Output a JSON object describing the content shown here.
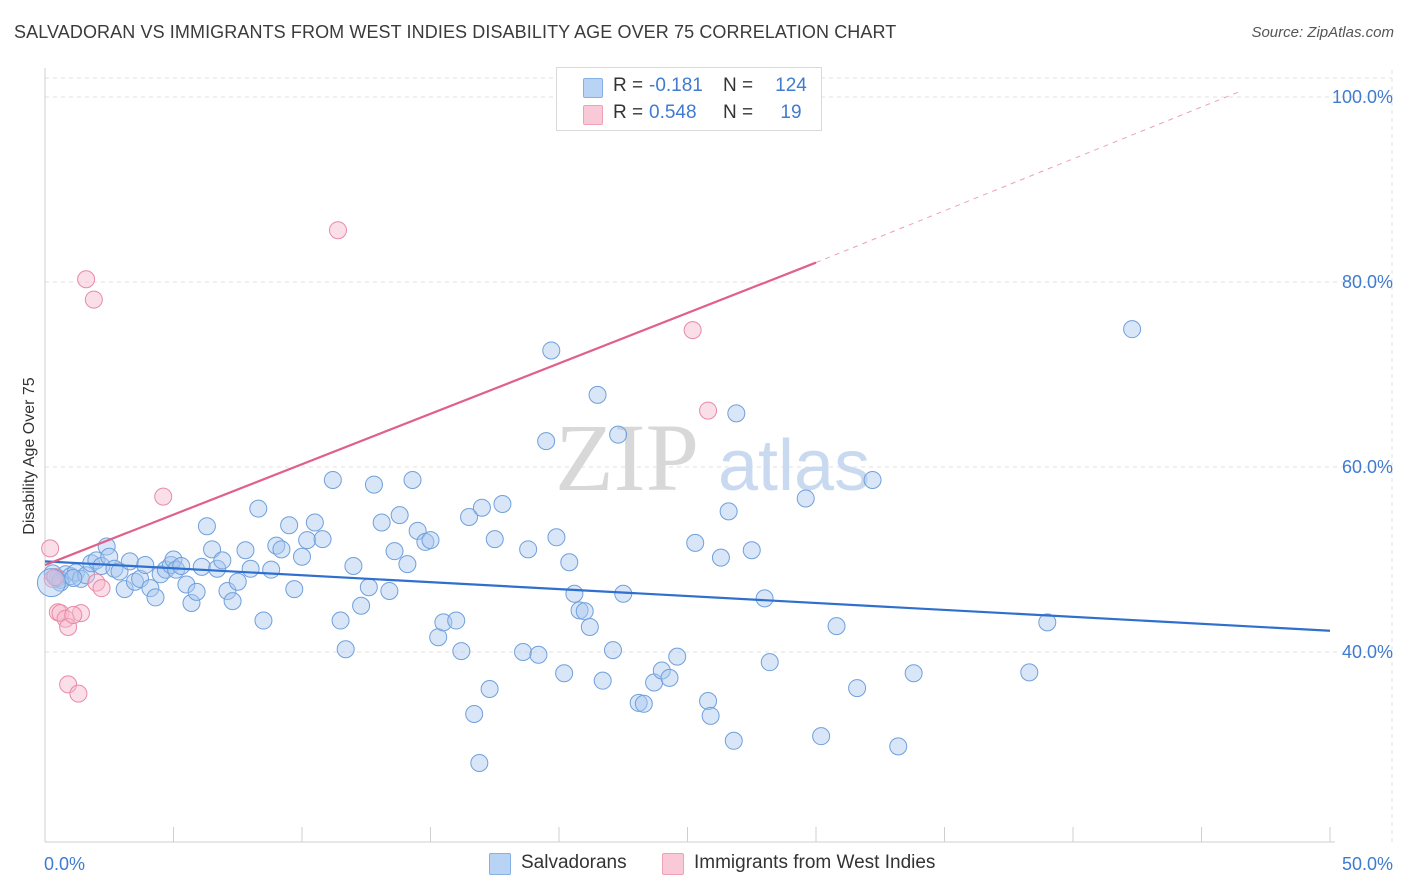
{
  "title": "SALVADORAN VS IMMIGRANTS FROM WEST INDIES DISABILITY AGE OVER 75 CORRELATION CHART",
  "source": "Source: ZipAtlas.com",
  "legend": {
    "r_label": "R =",
    "n_label": "N =",
    "rows": [
      {
        "name": "Salvadorans",
        "r": "-0.181",
        "n": "124",
        "color": "#a8c8f0"
      },
      {
        "name": "Immigrants from West Indies",
        "r": "0.548",
        "n": "19",
        "color": "#f6b8cc"
      }
    ]
  },
  "chart_data": {
    "type": "scatter",
    "title": "SALVADORAN VS IMMIGRANTS FROM WEST INDIES DISABILITY AGE OVER 75 CORRELATION CHART",
    "xlabel": "",
    "ylabel": "Disability Age Over 75",
    "xlim": [
      0,
      50
    ],
    "ylim": [
      20,
      102
    ],
    "x_tick_labels": [
      "0.0%",
      "50.0%"
    ],
    "y_ticks": [
      40,
      60,
      80,
      100
    ],
    "y_tick_labels": [
      "40.0%",
      "60.0%",
      "80.0%",
      "100.0%"
    ],
    "grid": true,
    "watermark": {
      "zip": "ZIP",
      "atlas": "atlas"
    },
    "series": [
      {
        "name": "Salvadorans",
        "color": "#a8c8f0",
        "stroke": "#6fa0dc",
        "trend": {
          "x0": 0,
          "y0": 49.8,
          "x1": 50,
          "y1": 42.3,
          "color": "#2f6fcd"
        },
        "points": [
          [
            0.3,
            48.5
          ],
          [
            0.5,
            48.0
          ],
          [
            0.6,
            47.8
          ],
          [
            0.8,
            48.4
          ],
          [
            1.0,
            48.2
          ],
          [
            1.2,
            48.6
          ],
          [
            1.4,
            47.9
          ],
          [
            1.6,
            48.3
          ],
          [
            1.8,
            49.6
          ],
          [
            2.0,
            49.9
          ],
          [
            2.2,
            49.3
          ],
          [
            2.4,
            51.4
          ],
          [
            2.5,
            50.3
          ],
          [
            2.7,
            49.0
          ],
          [
            2.9,
            48.7
          ],
          [
            3.1,
            46.8
          ],
          [
            3.3,
            49.8
          ],
          [
            3.5,
            47.6
          ],
          [
            3.7,
            47.9
          ],
          [
            3.9,
            49.4
          ],
          [
            4.1,
            46.9
          ],
          [
            4.3,
            45.9
          ],
          [
            4.5,
            48.4
          ],
          [
            4.7,
            48.9
          ],
          [
            4.9,
            49.4
          ],
          [
            5.0,
            50.0
          ],
          [
            5.1,
            48.9
          ],
          [
            5.3,
            49.3
          ],
          [
            5.5,
            47.3
          ],
          [
            5.7,
            45.3
          ],
          [
            5.9,
            46.5
          ],
          [
            6.1,
            49.2
          ],
          [
            6.3,
            53.6
          ],
          [
            6.5,
            51.1
          ],
          [
            6.7,
            49.0
          ],
          [
            6.9,
            49.9
          ],
          [
            7.1,
            46.6
          ],
          [
            7.3,
            45.5
          ],
          [
            7.5,
            47.6
          ],
          [
            7.8,
            51.0
          ],
          [
            8.0,
            49.0
          ],
          [
            8.3,
            55.5
          ],
          [
            8.5,
            43.4
          ],
          [
            8.8,
            48.9
          ],
          [
            9.0,
            51.5
          ],
          [
            9.2,
            51.1
          ],
          [
            9.5,
            53.7
          ],
          [
            9.7,
            46.8
          ],
          [
            10.0,
            50.3
          ],
          [
            10.2,
            52.1
          ],
          [
            10.5,
            54.0
          ],
          [
            10.8,
            52.2
          ],
          [
            11.2,
            58.6
          ],
          [
            11.5,
            43.4
          ],
          [
            11.7,
            40.3
          ],
          [
            12.0,
            49.3
          ],
          [
            12.3,
            45.0
          ],
          [
            12.6,
            47.0
          ],
          [
            12.8,
            58.1
          ],
          [
            13.1,
            54.0
          ],
          [
            13.4,
            46.6
          ],
          [
            13.6,
            50.9
          ],
          [
            13.8,
            54.8
          ],
          [
            14.1,
            49.5
          ],
          [
            14.3,
            58.6
          ],
          [
            14.5,
            53.1
          ],
          [
            14.8,
            51.9
          ],
          [
            15.0,
            52.1
          ],
          [
            15.3,
            41.6
          ],
          [
            15.5,
            43.2
          ],
          [
            16.0,
            43.4
          ],
          [
            16.2,
            40.1
          ],
          [
            16.5,
            54.6
          ],
          [
            16.7,
            33.3
          ],
          [
            17.0,
            55.6
          ],
          [
            17.3,
            36.0
          ],
          [
            17.5,
            52.2
          ],
          [
            17.8,
            56.0
          ],
          [
            16.9,
            28.0
          ],
          [
            18.6,
            40.0
          ],
          [
            18.8,
            51.1
          ],
          [
            19.2,
            39.7
          ],
          [
            19.5,
            62.8
          ],
          [
            19.7,
            72.6
          ],
          [
            19.9,
            52.4
          ],
          [
            20.2,
            37.7
          ],
          [
            20.4,
            49.7
          ],
          [
            20.6,
            46.3
          ],
          [
            20.8,
            44.5
          ],
          [
            21.0,
            44.4
          ],
          [
            21.2,
            42.7
          ],
          [
            21.5,
            67.8
          ],
          [
            21.7,
            36.9
          ],
          [
            22.1,
            40.2
          ],
          [
            22.3,
            63.5
          ],
          [
            22.5,
            46.3
          ],
          [
            23.1,
            34.5
          ],
          [
            23.3,
            34.4
          ],
          [
            23.7,
            36.7
          ],
          [
            24.0,
            38.0
          ],
          [
            24.3,
            37.2
          ],
          [
            24.6,
            39.5
          ],
          [
            25.3,
            51.8
          ],
          [
            25.8,
            34.7
          ],
          [
            25.9,
            33.1
          ],
          [
            26.3,
            50.2
          ],
          [
            26.6,
            55.2
          ],
          [
            26.8,
            30.4
          ],
          [
            26.9,
            65.8
          ],
          [
            27.5,
            51.0
          ],
          [
            28.0,
            45.8
          ],
          [
            28.2,
            38.9
          ],
          [
            29.6,
            56.6
          ],
          [
            30.2,
            30.9
          ],
          [
            30.8,
            42.8
          ],
          [
            31.6,
            36.1
          ],
          [
            32.2,
            58.6
          ],
          [
            33.2,
            29.8
          ],
          [
            33.8,
            37.7
          ],
          [
            38.3,
            37.8
          ],
          [
            39.0,
            43.2
          ],
          [
            42.3,
            74.9
          ],
          [
            0.6,
            47.5
          ],
          [
            1.1,
            48.0
          ]
        ]
      },
      {
        "name": "Immigrants from West Indies",
        "color": "#f6b8cc",
        "stroke": "#e88aa8",
        "trend": {
          "x0": 0,
          "y0": 49.4,
          "x1": 30,
          "y1": 82.1,
          "x_dash_end": 46.5,
          "y_dash_end": 100.6,
          "color": "#e0608a"
        },
        "points": [
          [
            0.2,
            51.2
          ],
          [
            0.3,
            47.9
          ],
          [
            0.5,
            44.3
          ],
          [
            0.6,
            44.2
          ],
          [
            0.8,
            43.6
          ],
          [
            0.9,
            42.7
          ],
          [
            0.9,
            36.5
          ],
          [
            1.3,
            35.5
          ],
          [
            1.4,
            44.2
          ],
          [
            1.6,
            80.3
          ],
          [
            1.9,
            78.1
          ],
          [
            2.0,
            47.5
          ],
          [
            2.2,
            46.9
          ],
          [
            4.6,
            56.8
          ],
          [
            11.4,
            85.6
          ],
          [
            25.2,
            74.8
          ],
          [
            25.8,
            66.1
          ],
          [
            0.4,
            48.1
          ],
          [
            1.1,
            44.0
          ]
        ]
      }
    ]
  }
}
